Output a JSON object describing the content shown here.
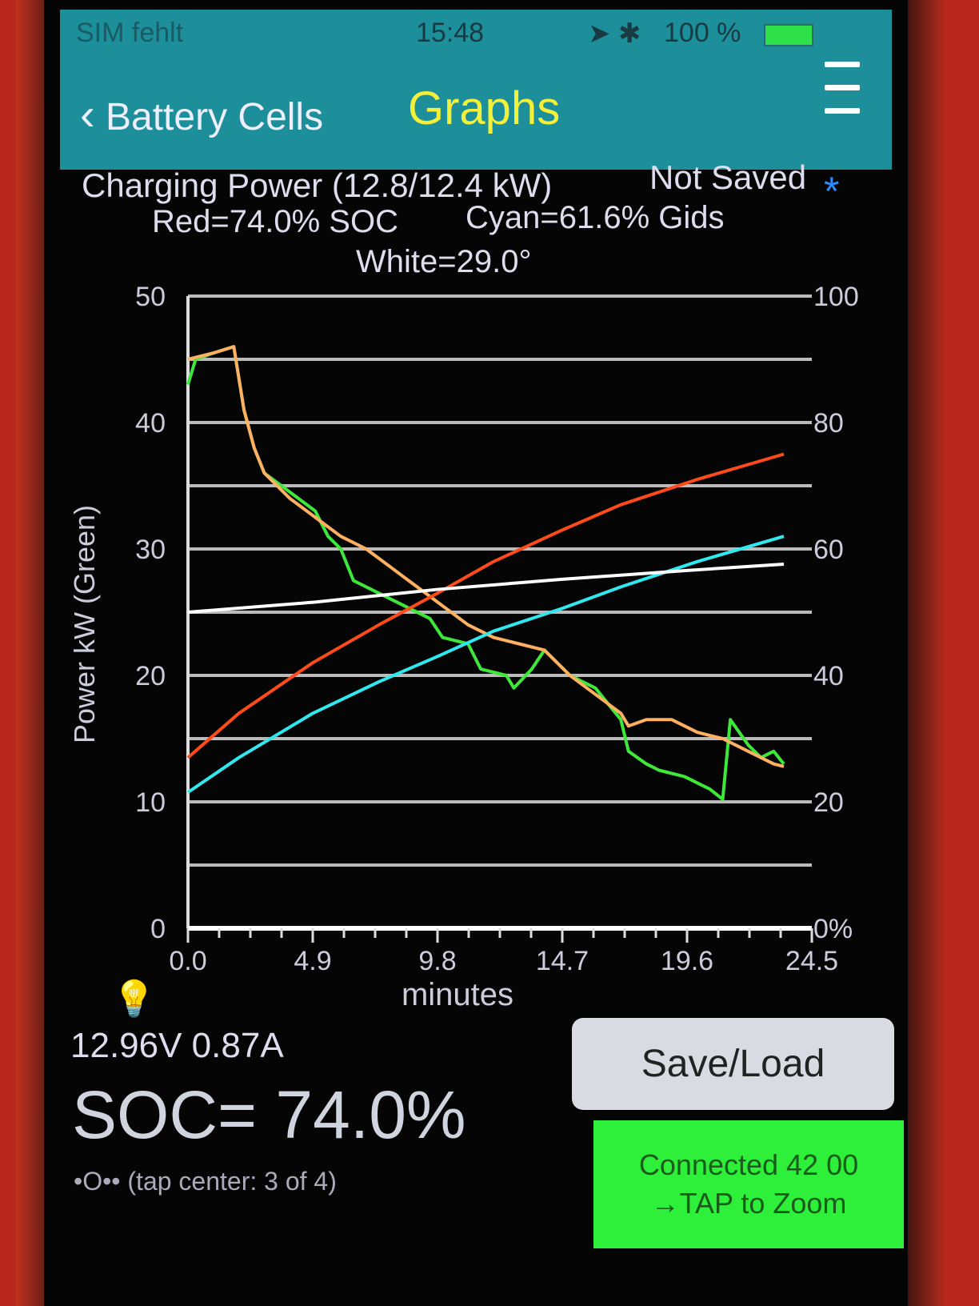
{
  "status_bar": {
    "carrier": "SIM fehlt",
    "time": "15:48",
    "battery": "100 %"
  },
  "nav": {
    "back_label": "Battery Cells",
    "title": "Graphs"
  },
  "header_info": {
    "line1": "Charging Power (12.8/12.4 kW)",
    "save_state": "Not Saved",
    "save_marker": "*",
    "line2_red": "Red=74.0% SOC",
    "line2_cyan": "Cyan=61.6% Gids",
    "line3": "White=29.0°"
  },
  "readouts": {
    "voltage_current": "12.96V 0.87A",
    "soc": "SOC= 74.0%",
    "page_indicator": "•O•• (tap center: 3 of 4)"
  },
  "buttons": {
    "save_load": "Save/Load",
    "connected": "Connected 42 00",
    "tap_zoom": "→TAP to Zoom"
  },
  "colors": {
    "header": "#1d8f9b",
    "title": "#f4f03a",
    "green": "#3de83a",
    "orange": "#ffb060",
    "red": "#ff4a1a",
    "cyan": "#30e8f0",
    "white": "#ffffff",
    "connect_bg": "#2eef3a"
  },
  "chart_data": {
    "type": "line",
    "xlabel": "minutes",
    "ylabel": "Power  kW   (Green)",
    "xlim": [
      0,
      24.5
    ],
    "ylim": [
      0,
      50
    ],
    "y2lim": [
      0,
      100
    ],
    "x_ticks": [
      "0.0",
      "4.9",
      "9.8",
      "14.7",
      "19.6",
      "24.5"
    ],
    "y_ticks": [
      "0",
      "10",
      "20",
      "30",
      "40",
      "50"
    ],
    "y2_ticks": [
      "0%",
      "20",
      "40",
      "60",
      "80",
      "100"
    ],
    "grid": true,
    "series": [
      {
        "color": "green",
        "axis": "left",
        "points": [
          [
            0,
            43
          ],
          [
            0.3,
            45
          ],
          [
            1,
            45.5
          ],
          [
            1.8,
            46
          ],
          [
            2.2,
            41
          ],
          [
            2.6,
            38
          ],
          [
            3,
            36
          ],
          [
            4,
            34.5
          ],
          [
            5,
            33
          ],
          [
            5.5,
            31
          ],
          [
            6,
            30
          ],
          [
            6.5,
            27.5
          ],
          [
            7.5,
            26.5
          ],
          [
            8.5,
            25.5
          ],
          [
            9.5,
            24.5
          ],
          [
            10,
            23
          ],
          [
            11,
            22.5
          ],
          [
            11.5,
            20.5
          ],
          [
            12.5,
            20
          ],
          [
            12.8,
            19
          ],
          [
            13.5,
            20.5
          ],
          [
            14,
            22
          ],
          [
            15,
            20
          ],
          [
            16,
            19
          ],
          [
            17,
            16.5
          ],
          [
            17.3,
            14
          ],
          [
            18,
            13
          ],
          [
            18.5,
            12.5
          ],
          [
            19.5,
            12
          ],
          [
            20.5,
            11
          ],
          [
            21,
            10.2
          ],
          [
            21.3,
            16.5
          ],
          [
            22,
            14.5
          ],
          [
            22.5,
            13.5
          ],
          [
            23,
            14
          ],
          [
            23.4,
            13
          ]
        ]
      },
      {
        "color": "orange",
        "axis": "left",
        "points": [
          [
            0,
            45
          ],
          [
            1,
            45.5
          ],
          [
            1.8,
            46
          ],
          [
            2.2,
            41
          ],
          [
            2.6,
            38
          ],
          [
            3,
            36
          ],
          [
            4,
            34
          ],
          [
            5,
            32.5
          ],
          [
            6,
            31
          ],
          [
            7,
            30
          ],
          [
            8,
            28.5
          ],
          [
            9,
            27
          ],
          [
            10,
            25.5
          ],
          [
            11,
            24
          ],
          [
            12,
            23
          ],
          [
            13,
            22.5
          ],
          [
            14,
            22
          ],
          [
            15,
            20
          ],
          [
            16,
            18.5
          ],
          [
            17,
            17
          ],
          [
            17.3,
            16
          ],
          [
            18,
            16.5
          ],
          [
            19,
            16.5
          ],
          [
            20,
            15.5
          ],
          [
            21,
            15
          ],
          [
            22,
            14
          ],
          [
            23,
            13
          ],
          [
            23.4,
            12.8
          ]
        ]
      },
      {
        "color": "red",
        "axis": "right",
        "points": [
          [
            0,
            27
          ],
          [
            2,
            34
          ],
          [
            4.9,
            42
          ],
          [
            7.5,
            48
          ],
          [
            9.8,
            53
          ],
          [
            12,
            58
          ],
          [
            14.7,
            63
          ],
          [
            17,
            67
          ],
          [
            20,
            71
          ],
          [
            23.4,
            75
          ]
        ]
      },
      {
        "color": "cyan",
        "axis": "right",
        "points": [
          [
            0,
            21.5
          ],
          [
            2,
            27
          ],
          [
            4.9,
            34
          ],
          [
            7.5,
            39
          ],
          [
            9.8,
            43
          ],
          [
            12,
            47
          ],
          [
            14.7,
            50.6
          ],
          [
            17,
            54
          ],
          [
            20,
            58
          ],
          [
            23.4,
            62
          ]
        ]
      },
      {
        "color": "white",
        "axis": "left",
        "points": [
          [
            0,
            25
          ],
          [
            5,
            25.8
          ],
          [
            9.8,
            26.8
          ],
          [
            14.7,
            27.6
          ],
          [
            19.6,
            28.3
          ],
          [
            23.4,
            28.8
          ]
        ]
      }
    ]
  }
}
